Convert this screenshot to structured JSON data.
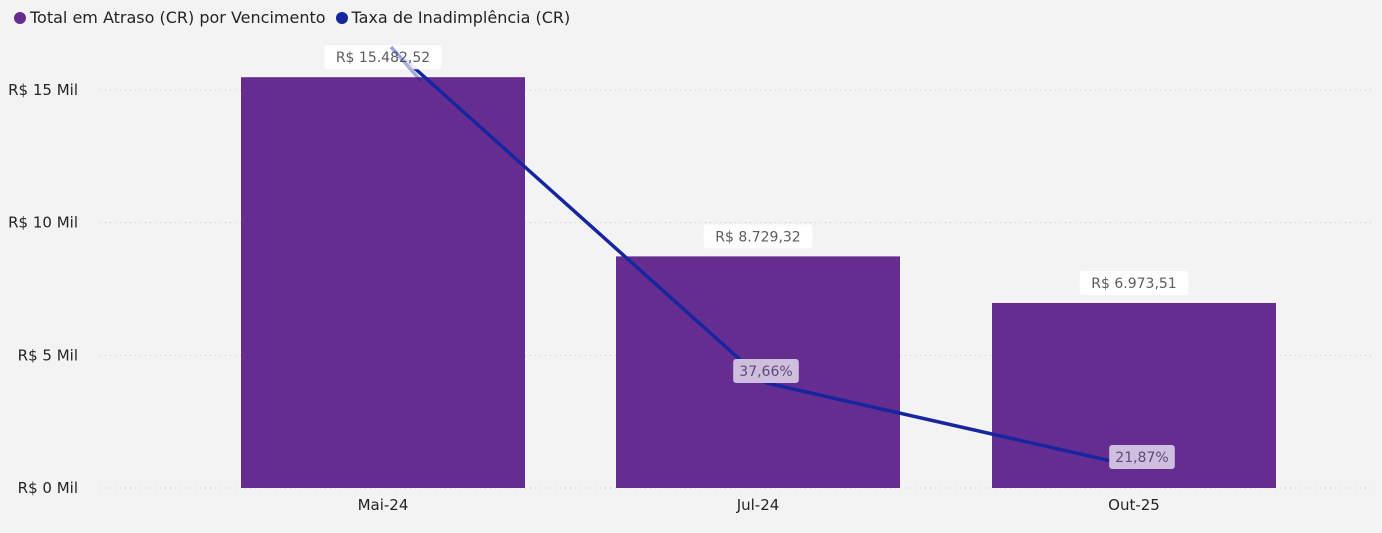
{
  "colors": {
    "background": "#f3f3f3",
    "bar": "#652d90",
    "line": "#1726a0",
    "gridline": "#c8c8c8",
    "label_bg": "#ffffff",
    "pct_label_bg": "#d5c6e3"
  },
  "chart_data": {
    "type": "bar",
    "combo": "bar+line",
    "categories": [
      "Mai-24",
      "Jul-24",
      "Out-25"
    ],
    "series": [
      {
        "name": "Total em Atraso (CR) por Vencimento",
        "type": "bar",
        "axis": "left",
        "values": [
          15482.52,
          8729.32,
          6973.51
        ],
        "labels": [
          "R$ 15.482,52",
          "R$ 8.729,32",
          "R$ 6.973,51"
        ]
      },
      {
        "name": "Taxa de Inadimplência (CR)",
        "type": "line",
        "axis": "secondary-hidden",
        "values": [
          100,
          37.66,
          21.87
        ],
        "labels": [
          "",
          "37,66%",
          "21,87%"
        ]
      }
    ],
    "yticks": [
      0,
      5000,
      10000,
      15000
    ],
    "ytick_labels": [
      "R$ 0 Mil",
      "R$ 5 Mil",
      "R$ 10 Mil",
      "R$ 15 Mil"
    ],
    "ylim": [
      0,
      15000
    ],
    "grid": true,
    "legend_position": "top-left"
  }
}
